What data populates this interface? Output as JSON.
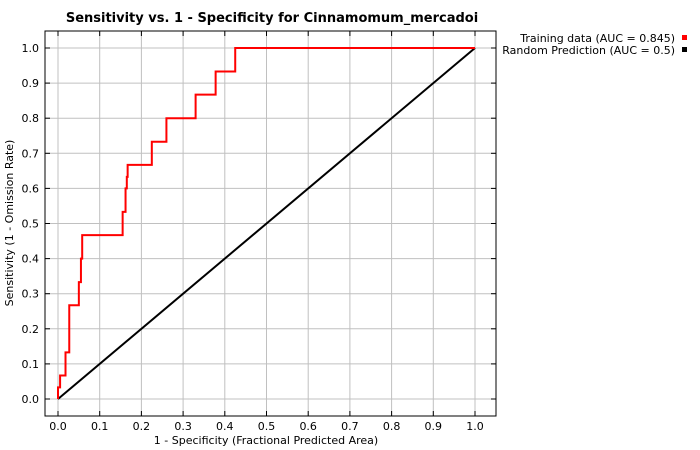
{
  "chart_data": {
    "type": "line",
    "title": "Sensitivity vs. 1 - Specificity for Cinnamomum_mercadoi",
    "xlabel": "1 - Specificity  (Fractional Predicted Area)",
    "ylabel": "Sensitivity  (1 - Omission Rate)",
    "xlim": [
      0,
      1
    ],
    "ylim": [
      0,
      1
    ],
    "xticks": [
      "0.0",
      "0.1",
      "0.2",
      "0.3",
      "0.4",
      "0.5",
      "0.6",
      "0.7",
      "0.8",
      "0.9",
      "1.0"
    ],
    "yticks": [
      "0.0",
      "0.1",
      "0.2",
      "0.3",
      "0.4",
      "0.5",
      "0.6",
      "0.7",
      "0.8",
      "0.9",
      "1.0"
    ],
    "grid": true,
    "legend_position": "outside-top-right",
    "series": [
      {
        "name": "Training data (AUC = 0.845)",
        "color": "#ff0000",
        "x": [
          0.0,
          0.0,
          0.005,
          0.005,
          0.018,
          0.018,
          0.027,
          0.027,
          0.05,
          0.05,
          0.055,
          0.055,
          0.058,
          0.058,
          0.155,
          0.155,
          0.162,
          0.162,
          0.165,
          0.165,
          0.167,
          0.167,
          0.225,
          0.225,
          0.26,
          0.26,
          0.33,
          0.33,
          0.378,
          0.378,
          0.425,
          0.425,
          1.0
        ],
        "y": [
          0.0,
          0.033,
          0.033,
          0.067,
          0.067,
          0.133,
          0.133,
          0.267,
          0.267,
          0.333,
          0.333,
          0.4,
          0.4,
          0.467,
          0.467,
          0.533,
          0.533,
          0.6,
          0.6,
          0.633,
          0.633,
          0.667,
          0.667,
          0.733,
          0.733,
          0.8,
          0.8,
          0.867,
          0.867,
          0.933,
          0.933,
          1.0,
          1.0
        ]
      },
      {
        "name": "Random Prediction (AUC = 0.5)",
        "color": "#000000",
        "x": [
          0.0,
          1.0
        ],
        "y": [
          0.0,
          1.0
        ]
      }
    ]
  }
}
